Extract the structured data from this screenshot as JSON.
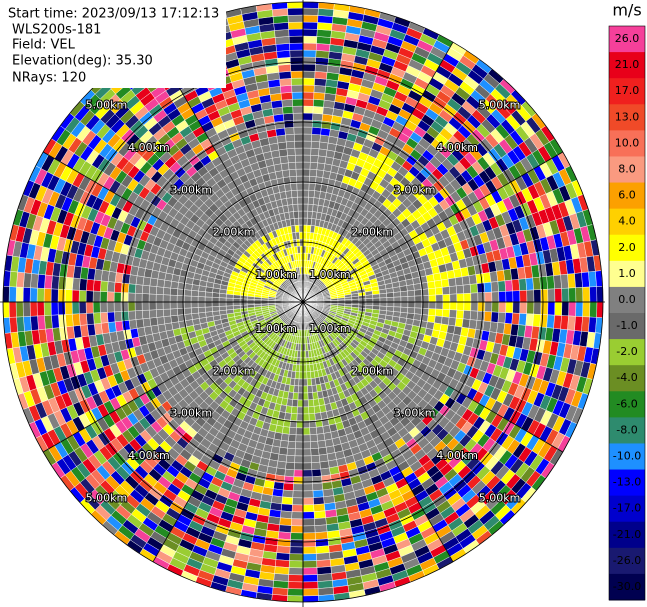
{
  "chart_data": {
    "type": "ppi",
    "info": [
      "Start time: 2023/09/13 17:12:13",
      "WLS200s-181",
      "Field: VEL",
      "Elevation(deg): 35.30",
      "NRays: 120"
    ],
    "ring_labels": [
      "1.00km",
      "2.00km",
      "3.00km",
      "4.00km",
      "5.00km"
    ],
    "colorbar_title": "m/s",
    "cticks": [
      {
        "value": 26,
        "label": "26.0"
      },
      {
        "value": 21,
        "label": "21.0"
      },
      {
        "value": 17,
        "label": "17.0"
      },
      {
        "value": 13,
        "label": "13.0"
      },
      {
        "value": 10,
        "label": "10.0"
      },
      {
        "value": 8,
        "label": "8.0"
      },
      {
        "value": 6,
        "label": "6.0"
      },
      {
        "value": 4,
        "label": "4.0"
      },
      {
        "value": 2,
        "label": "2.0"
      },
      {
        "value": 1,
        "label": "1.0"
      },
      {
        "value": 0,
        "label": "0.0"
      },
      {
        "value": -1,
        "label": "-1.0"
      },
      {
        "value": -2,
        "label": "-2.0"
      },
      {
        "value": -4,
        "label": "-4.0"
      },
      {
        "value": -6,
        "label": "-6.0"
      },
      {
        "value": -8,
        "label": "-8.0"
      },
      {
        "value": -10,
        "label": "-10.0"
      },
      {
        "value": -13,
        "label": "-13.0"
      },
      {
        "value": -17,
        "label": "-17.0"
      },
      {
        "value": -21,
        "label": "-21.0"
      },
      {
        "value": -26,
        "label": "-26.0"
      },
      {
        "value": -30,
        "label": "-30.0"
      }
    ],
    "colors": [
      "#f5409a",
      "#e8001a",
      "#f0201e",
      "#f04a28",
      "#f87058",
      "#fa9a80",
      "#fca000",
      "#ffd000",
      "#ffff00",
      "#ffff90",
      "#808080",
      "#6a6a6a",
      "#9acd32",
      "#6b8e23",
      "#228b22",
      "#2e8b6e",
      "#1e90ff",
      "#0000ff",
      "#0000cd",
      "#00008b",
      "#191970",
      "#000050"
    ]
  }
}
